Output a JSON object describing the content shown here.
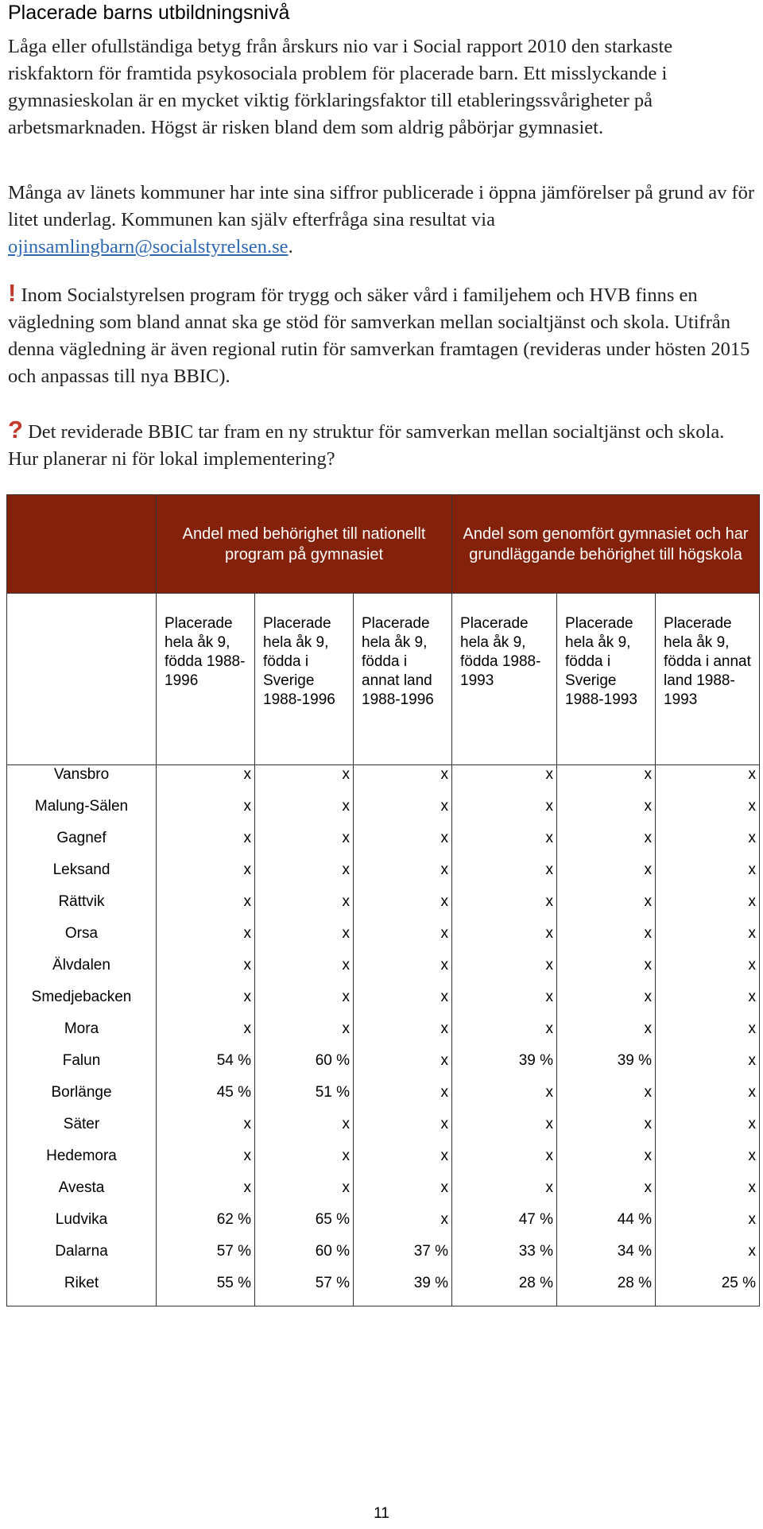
{
  "title": "Placerade barns utbildningsnivå",
  "paragraph1": "Låga eller ofullständiga betyg från årskurs nio var i Social rapport 2010 den starkaste riskfaktorn för framtida psykosociala problem för placerade barn. Ett misslyckande i gymnasieskolan är en mycket viktig förklaringsfaktor till etableringssvårigheter på arbetsmarknaden. Högst är risken bland dem som aldrig påbörjar gymnasiet.",
  "paragraph2": {
    "before_link": "Många av länets kommuner har inte sina siffror publicerade i öppna jämförelser på grund av för litet underlag. Kommunen kan själv efterfråga sina resultat via ",
    "link": "ojinsamlingbarn@socialstyrelsen.se",
    "after_link": "."
  },
  "paragraph3": {
    "mark": "!",
    "text": " Inom Socialstyrelsen program för trygg och säker vård i familjehem och HVB finns en vägledning som bland annat ska ge stöd för samverkan mellan socialtjänst och skola. Utifrån denna vägledning är även regional rutin för samverkan framtagen (revideras under hösten 2015 och anpassas till nya BBIC)."
  },
  "paragraph4": {
    "mark": "?",
    "text": " Det reviderade BBIC tar fram en ny struktur för samverkan mellan socialtjänst och skola. Hur planerar ni för lokal implementering?"
  },
  "table": {
    "group_headers": [
      "Andel med behörighet till nationellt program på gymnasiet",
      "Andel som genomfört gymnasiet och har grundläggande behörighet till högskola"
    ],
    "sub_headers": [
      "Placerade hela åk 9, födda 1988-1996",
      "Placerade hela åk 9, födda i Sverige 1988-1996",
      "Placerade hela åk 9, födda i annat land 1988-1996",
      "Placerade hela åk 9, födda 1988-1993",
      "Placerade hela åk 9, födda i Sverige 1988-1993",
      "Placerade hela åk 9, födda i annat land 1988-1993"
    ],
    "municipalities": [
      "Vansbro",
      "Malung-Sälen",
      "Gagnef",
      "Leksand",
      "Rättvik",
      "Orsa",
      "Älvdalen",
      "Smedjebacken",
      "Mora",
      "Falun",
      "Borlänge",
      "Säter",
      "Hedemora",
      "Avesta",
      "Ludvika",
      "Dalarna",
      "Riket"
    ],
    "columns": [
      [
        "x",
        "x",
        "x",
        "x",
        "x",
        "x",
        "x",
        "x",
        "x",
        "54 %",
        "45 %",
        "x",
        "x",
        "x",
        "62 %",
        "57 %",
        "55 %"
      ],
      [
        "x",
        "x",
        "x",
        "x",
        "x",
        "x",
        "x",
        "x",
        "x",
        "60 %",
        "51 %",
        "x",
        "x",
        "x",
        "65 %",
        "60 %",
        "57 %"
      ],
      [
        "x",
        "x",
        "x",
        "x",
        "x",
        "x",
        "x",
        "x",
        "x",
        "x",
        "x",
        "x",
        "x",
        "x",
        "x",
        "37 %",
        "39 %"
      ],
      [
        "x",
        "x",
        "x",
        "x",
        "x",
        "x",
        "x",
        "x",
        "x",
        "39 %",
        "x",
        "x",
        "x",
        "x",
        "47 %",
        "33 %",
        "28 %"
      ],
      [
        "x",
        "x",
        "x",
        "x",
        "x",
        "x",
        "x",
        "x",
        "x",
        "39 %",
        "x",
        "x",
        "x",
        "x",
        "44 %",
        "34 %",
        "28 %"
      ],
      [
        "x",
        "x",
        "x",
        "x",
        "x",
        "x",
        "x",
        "x",
        "x",
        "x",
        "x",
        "x",
        "x",
        "x",
        "x",
        "x",
        "25 %"
      ]
    ]
  },
  "page_number": "11"
}
